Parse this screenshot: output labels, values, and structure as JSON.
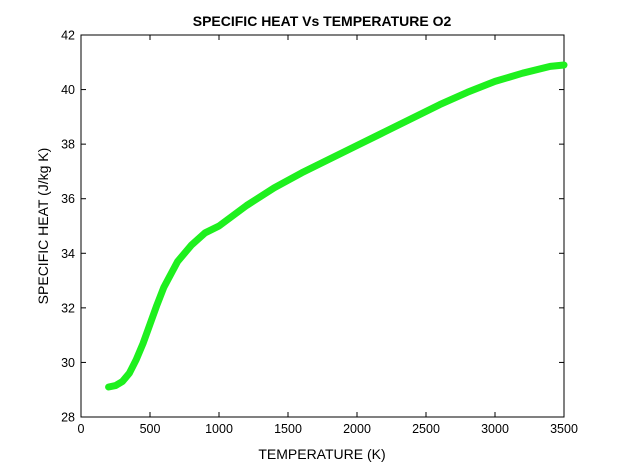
{
  "chart_data": {
    "type": "line",
    "title": "SPECIFIC HEAT Vs TEMPERATURE O2",
    "xlabel": "TEMPERATURE (K)",
    "ylabel": "SPECIFIC HEAT (J/kg K)",
    "xlim": [
      0,
      3500
    ],
    "ylim": [
      28,
      42
    ],
    "xticks": [
      0,
      500,
      1000,
      1500,
      2000,
      2500,
      3000,
      3500
    ],
    "yticks": [
      28,
      30,
      32,
      34,
      36,
      38,
      40,
      42
    ],
    "grid": false,
    "legend": "none",
    "series_color": "#1ef01e",
    "x": [
      200,
      250,
      300,
      350,
      400,
      450,
      500,
      550,
      600,
      700,
      800,
      900,
      1000,
      1200,
      1400,
      1600,
      1800,
      2000,
      2200,
      2400,
      2600,
      2800,
      3000,
      3200,
      3400,
      3500
    ],
    "y": [
      29.1,
      29.15,
      29.3,
      29.6,
      30.1,
      30.7,
      31.4,
      32.1,
      32.75,
      33.7,
      34.3,
      34.75,
      35.0,
      35.75,
      36.4,
      36.95,
      37.45,
      37.95,
      38.45,
      38.95,
      39.45,
      39.9,
      40.3,
      40.6,
      40.85,
      40.9
    ]
  }
}
